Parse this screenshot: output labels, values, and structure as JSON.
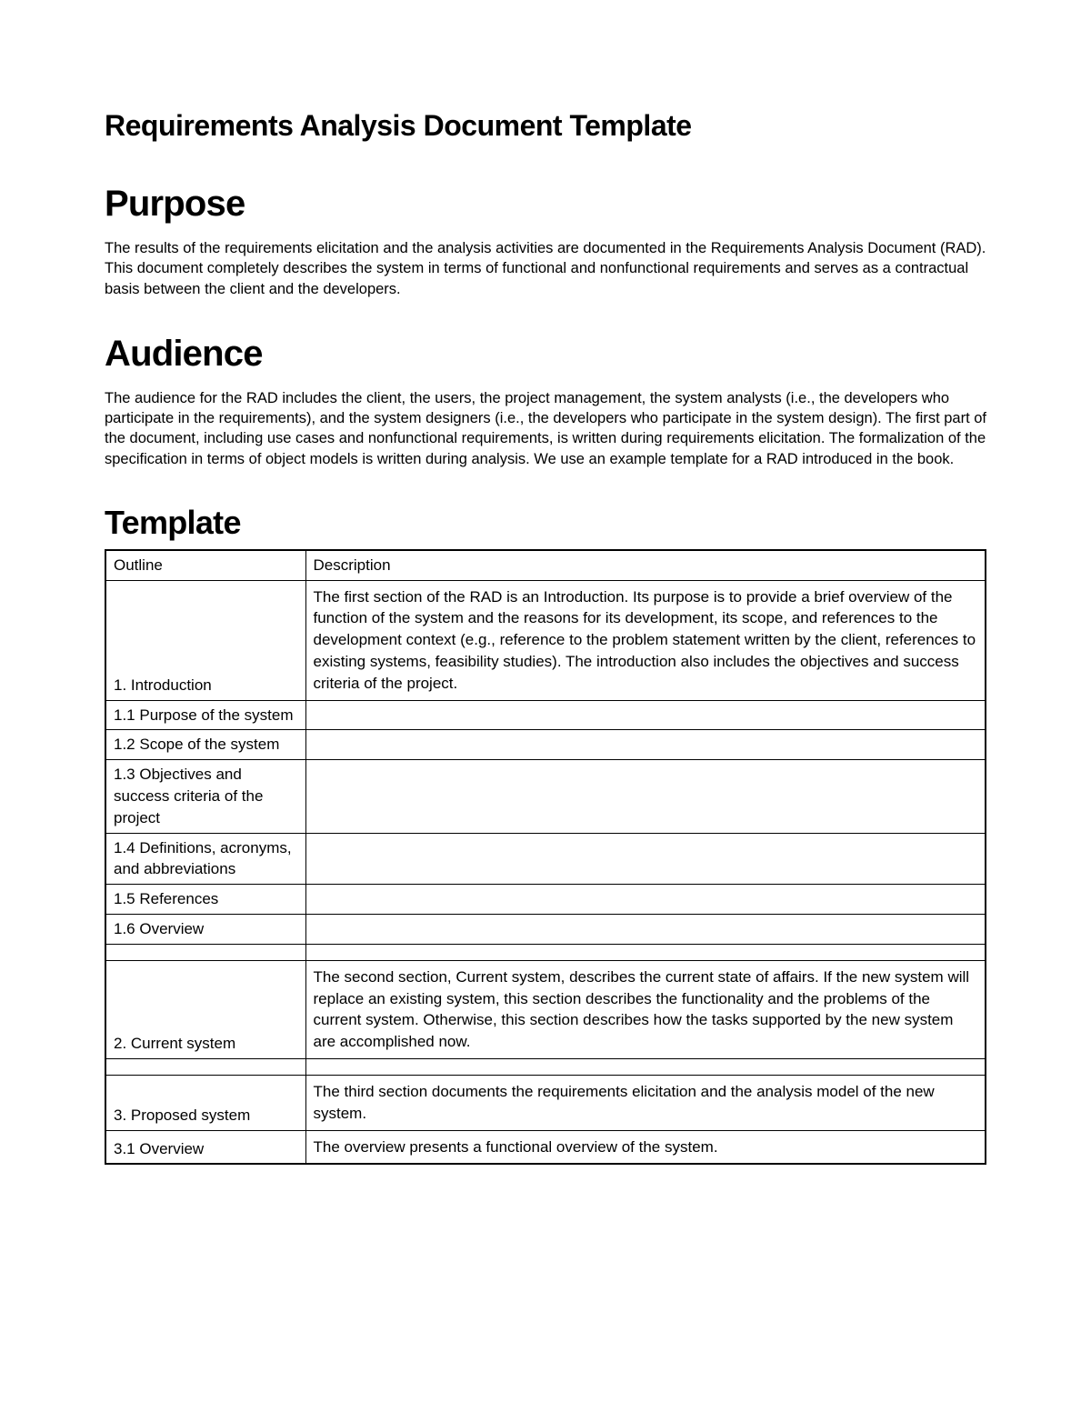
{
  "title": "Requirements Analysis Document Template",
  "sections": {
    "purpose": {
      "heading": "Purpose",
      "body": "The results of the requirements elicitation and the analysis activities are documented in the Requirements Analysis Document (RAD). This document completely describes the system in terms of functional and nonfunctional requirements and serves as a contractual basis between the client and the developers."
    },
    "audience": {
      "heading": "Audience",
      "body": "The audience for the RAD includes the client, the users, the project management, the system analysts (i.e., the developers who participate in the requirements), and the system designers (i.e., the developers who participate in the system design). The first part of the document, including use cases and nonfunctional requirements, is written during requirements elicitation. The formalization of the specification in terms of object models is written during analysis. We use an example template for a RAD introduced in the book."
    },
    "template": {
      "heading": "Template",
      "columns": {
        "outline": "Outline",
        "description": "Description"
      },
      "rows": [
        {
          "outline": "1. Introduction",
          "description": "The first section of the RAD is an Introduction. Its purpose is to provide a brief overview of the function of the system and the reasons for its development, its scope, and references to the development context (e.g., reference to the problem statement written by the client, references to existing systems, feasibility studies). The introduction also includes the objectives and success criteria of the project."
        },
        {
          "outline": "1.1 Purpose of the system",
          "description": ""
        },
        {
          "outline": "1.2 Scope of the system",
          "description": ""
        },
        {
          "outline": "1.3 Objectives and success criteria of the project",
          "description": ""
        },
        {
          "outline": "1.4 Definitions, acronyms, and abbreviations",
          "description": ""
        },
        {
          "outline": "1.5 References",
          "description": ""
        },
        {
          "outline": "1.6 Overview",
          "description": ""
        },
        {
          "spacer": true
        },
        {
          "outline": "2. Current system",
          "description": "The second section, Current system, describes the current state of affairs. If the new system will replace an existing system, this section describes the functionality and the problems of the current system. Otherwise, this section describes how the tasks supported by the new system are accomplished now."
        },
        {
          "spacer": true
        },
        {
          "outline": "3. Proposed system",
          "description": "The third section documents the requirements elicitation and the analysis model of the new system."
        },
        {
          "outline": "3.1 Overview",
          "description": "The overview presents a functional overview of the system."
        }
      ]
    }
  },
  "styling": {
    "background_color": "#ffffff",
    "text_color": "#000000",
    "title_fontsize": 32,
    "heading_fontsize": 40,
    "template_heading_fontsize": 36,
    "body_fontsize": 16.5,
    "table_fontsize": 17,
    "outline_col_width": 220
  }
}
